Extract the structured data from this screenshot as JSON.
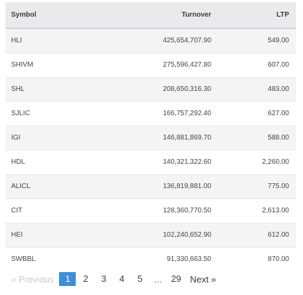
{
  "table": {
    "headers": {
      "symbol": "Symbol",
      "turnover": "Turnover",
      "ltp": "LTP"
    },
    "rows": [
      {
        "symbol": "HLI",
        "turnover": "425,654,707.90",
        "ltp": "549.00"
      },
      {
        "symbol": "SHIVM",
        "turnover": "275,596,427.80",
        "ltp": "607.00"
      },
      {
        "symbol": "SHL",
        "turnover": "208,650,316.30",
        "ltp": "483.00"
      },
      {
        "symbol": "SJLIC",
        "turnover": "166,757,292.40",
        "ltp": "627.00"
      },
      {
        "symbol": "IGI",
        "turnover": "146,881,869.70",
        "ltp": "588.00"
      },
      {
        "symbol": "HDL",
        "turnover": "140,321,322.60",
        "ltp": "2,260.00"
      },
      {
        "symbol": "ALICL",
        "turnover": "136,819,881.00",
        "ltp": "775.00"
      },
      {
        "symbol": "CIT",
        "turnover": "128,360,770.50",
        "ltp": "2,613.00"
      },
      {
        "symbol": "HEI",
        "turnover": "102,240,652.90",
        "ltp": "612.00"
      },
      {
        "symbol": "SWBBL",
        "turnover": "91,330,663.50",
        "ltp": "870.00"
      }
    ]
  },
  "pagination": {
    "previous_label": "« Previous",
    "pages": [
      "1",
      "2",
      "3",
      "4",
      "5"
    ],
    "active_page": "1",
    "ellipsis": "…",
    "last_page": "29",
    "next_label": "Next »"
  }
}
